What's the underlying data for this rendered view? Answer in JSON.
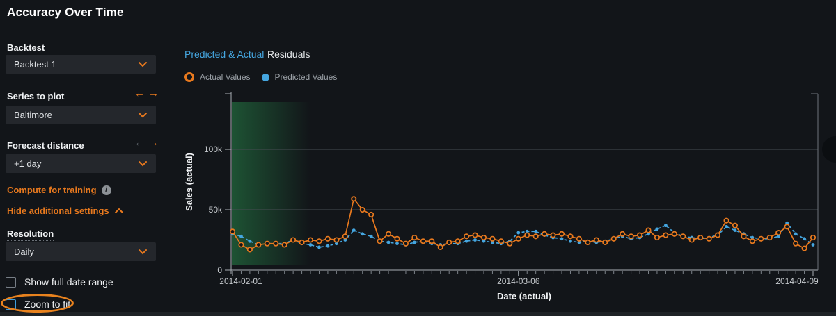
{
  "window": {
    "title": "Accuracy Over Time"
  },
  "colors": {
    "background": "#121519",
    "accent_orange": "#E8791E",
    "accent_blue": "#45A6E0",
    "panel": "#24272C",
    "training_band_green": "#1E5635",
    "annotation_orange": "#E8821E"
  },
  "icons": {
    "left_arrow": "←",
    "right_arrow": "→",
    "info": "i"
  },
  "sidebar": {
    "backtest": {
      "label": "Backtest",
      "value": "Backtest 1"
    },
    "series_to_plot": {
      "label": "Series to plot",
      "value": "Baltimore",
      "left_arrow_enabled": true,
      "right_arrow_enabled": true
    },
    "forecast_distance": {
      "label": "Forecast distance",
      "value": "+1 day",
      "left_arrow_enabled": false,
      "right_arrow_enabled": true
    },
    "compute_for_training": {
      "label": "Compute for training",
      "has_info_icon": true
    },
    "hide_additional_settings": {
      "label": "Hide additional settings",
      "chevron": "up"
    },
    "resolution": {
      "label": "Resolution",
      "value": "Daily"
    },
    "checkboxes": [
      {
        "label": "Show full date range",
        "checked": false,
        "annotated": false
      },
      {
        "label": "Zoom to fit",
        "checked": false,
        "annotated": true
      }
    ]
  },
  "tabs": [
    {
      "label": "Predicted & Actual",
      "active": true
    },
    {
      "label": "Residuals",
      "active": false
    }
  ],
  "legend": [
    {
      "label": "Actual Values",
      "marker": "open-circle",
      "color": "#E8791E"
    },
    {
      "label": "Predicted Values",
      "marker": "filled-circle",
      "color": "#45A6E0"
    }
  ],
  "chart_data": {
    "type": "line",
    "title": "",
    "xlabel": "Date (actual)",
    "ylabel": "Sales (actual)",
    "x_start_date": "2014-02-01",
    "x_interval": "daily",
    "x_tick_labels": [
      "2014-02-01",
      "2014-03-06",
      "2014-04-09"
    ],
    "x_tick_indices": [
      0,
      33,
      67
    ],
    "y_ticks": [
      {
        "value": 0,
        "label": "0"
      },
      {
        "value": 50000,
        "label": "50k"
      },
      {
        "value": 100000,
        "label": "100k"
      }
    ],
    "ylim": [
      0,
      146000
    ],
    "grid": "horizontal",
    "legend_position": "top-left",
    "training_region": {
      "start_index": 0,
      "end_index": 9,
      "color": "#1E5635"
    },
    "series": [
      {
        "name": "Actual Values",
        "color": "#E8791E",
        "line_style": "solid",
        "marker": "open-circle",
        "values": [
          32000,
          21000,
          17000,
          21000,
          22000,
          22000,
          21000,
          25000,
          23000,
          25000,
          24000,
          26000,
          25000,
          28000,
          59000,
          50000,
          46000,
          24000,
          30000,
          26000,
          22000,
          27000,
          24000,
          24000,
          19000,
          23000,
          24000,
          28000,
          29000,
          27000,
          26000,
          24000,
          22000,
          26000,
          29000,
          28000,
          30000,
          29000,
          30000,
          28000,
          26000,
          23000,
          25000,
          23000,
          26000,
          30000,
          28000,
          29000,
          33000,
          27000,
          29000,
          30000,
          28000,
          25000,
          27000,
          26000,
          29000,
          41000,
          37000,
          28000,
          24000,
          26000,
          27000,
          31000,
          36000,
          22000,
          18000,
          27000
        ]
      },
      {
        "name": "Predicted Values",
        "color": "#45A6E0",
        "line_style": "dashed",
        "marker": "filled-circle",
        "values": [
          30000,
          28000,
          24000,
          21000,
          22000,
          22000,
          22000,
          25000,
          22000,
          21000,
          19000,
          20000,
          22000,
          25000,
          33000,
          30000,
          28000,
          24000,
          23000,
          22000,
          21000,
          23000,
          24000,
          22000,
          21000,
          22000,
          22000,
          24000,
          25000,
          24000,
          23000,
          22000,
          24000,
          31000,
          32000,
          32000,
          29000,
          27000,
          26000,
          24000,
          23000,
          24000,
          23000,
          24000,
          26000,
          28000,
          26000,
          27000,
          30000,
          34000,
          37000,
          31000,
          28000,
          27000,
          26000,
          27000,
          29000,
          36000,
          33000,
          30000,
          27000,
          26000,
          26000,
          28000,
          39000,
          30000,
          26000,
          21000
        ]
      }
    ]
  }
}
